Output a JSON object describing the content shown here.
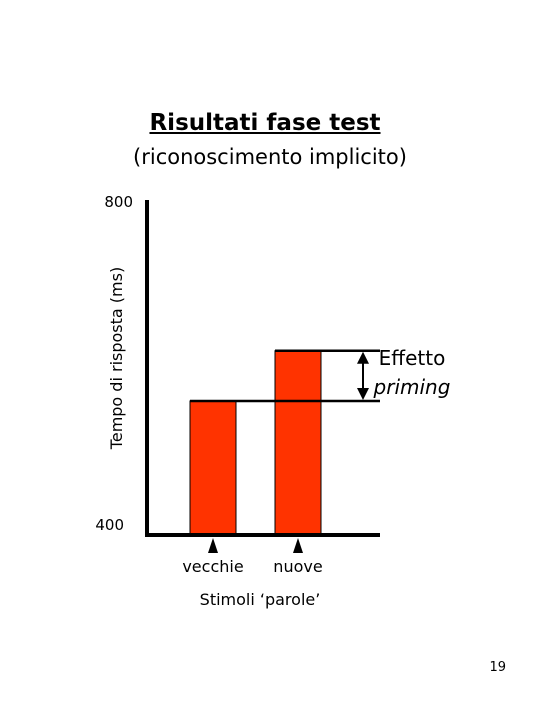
{
  "slide": {
    "title": "Risultati fase test",
    "subtitle": "(riconoscimento implicito)",
    "page_number": "19"
  },
  "chart_data": {
    "type": "bar",
    "categories": [
      "vecchie",
      "nuove"
    ],
    "values": [
      560,
      620
    ],
    "ylim": [
      400,
      800
    ],
    "yticks": [
      "400",
      "800"
    ],
    "ylabel": "Tempo di risposta (ms)",
    "xlabel": "Stimoli ‘parole’",
    "annotation": {
      "line1": "Effetto",
      "line2": "priming"
    },
    "colors": {
      "bar": "#ff3300",
      "axis": "#000000"
    }
  }
}
